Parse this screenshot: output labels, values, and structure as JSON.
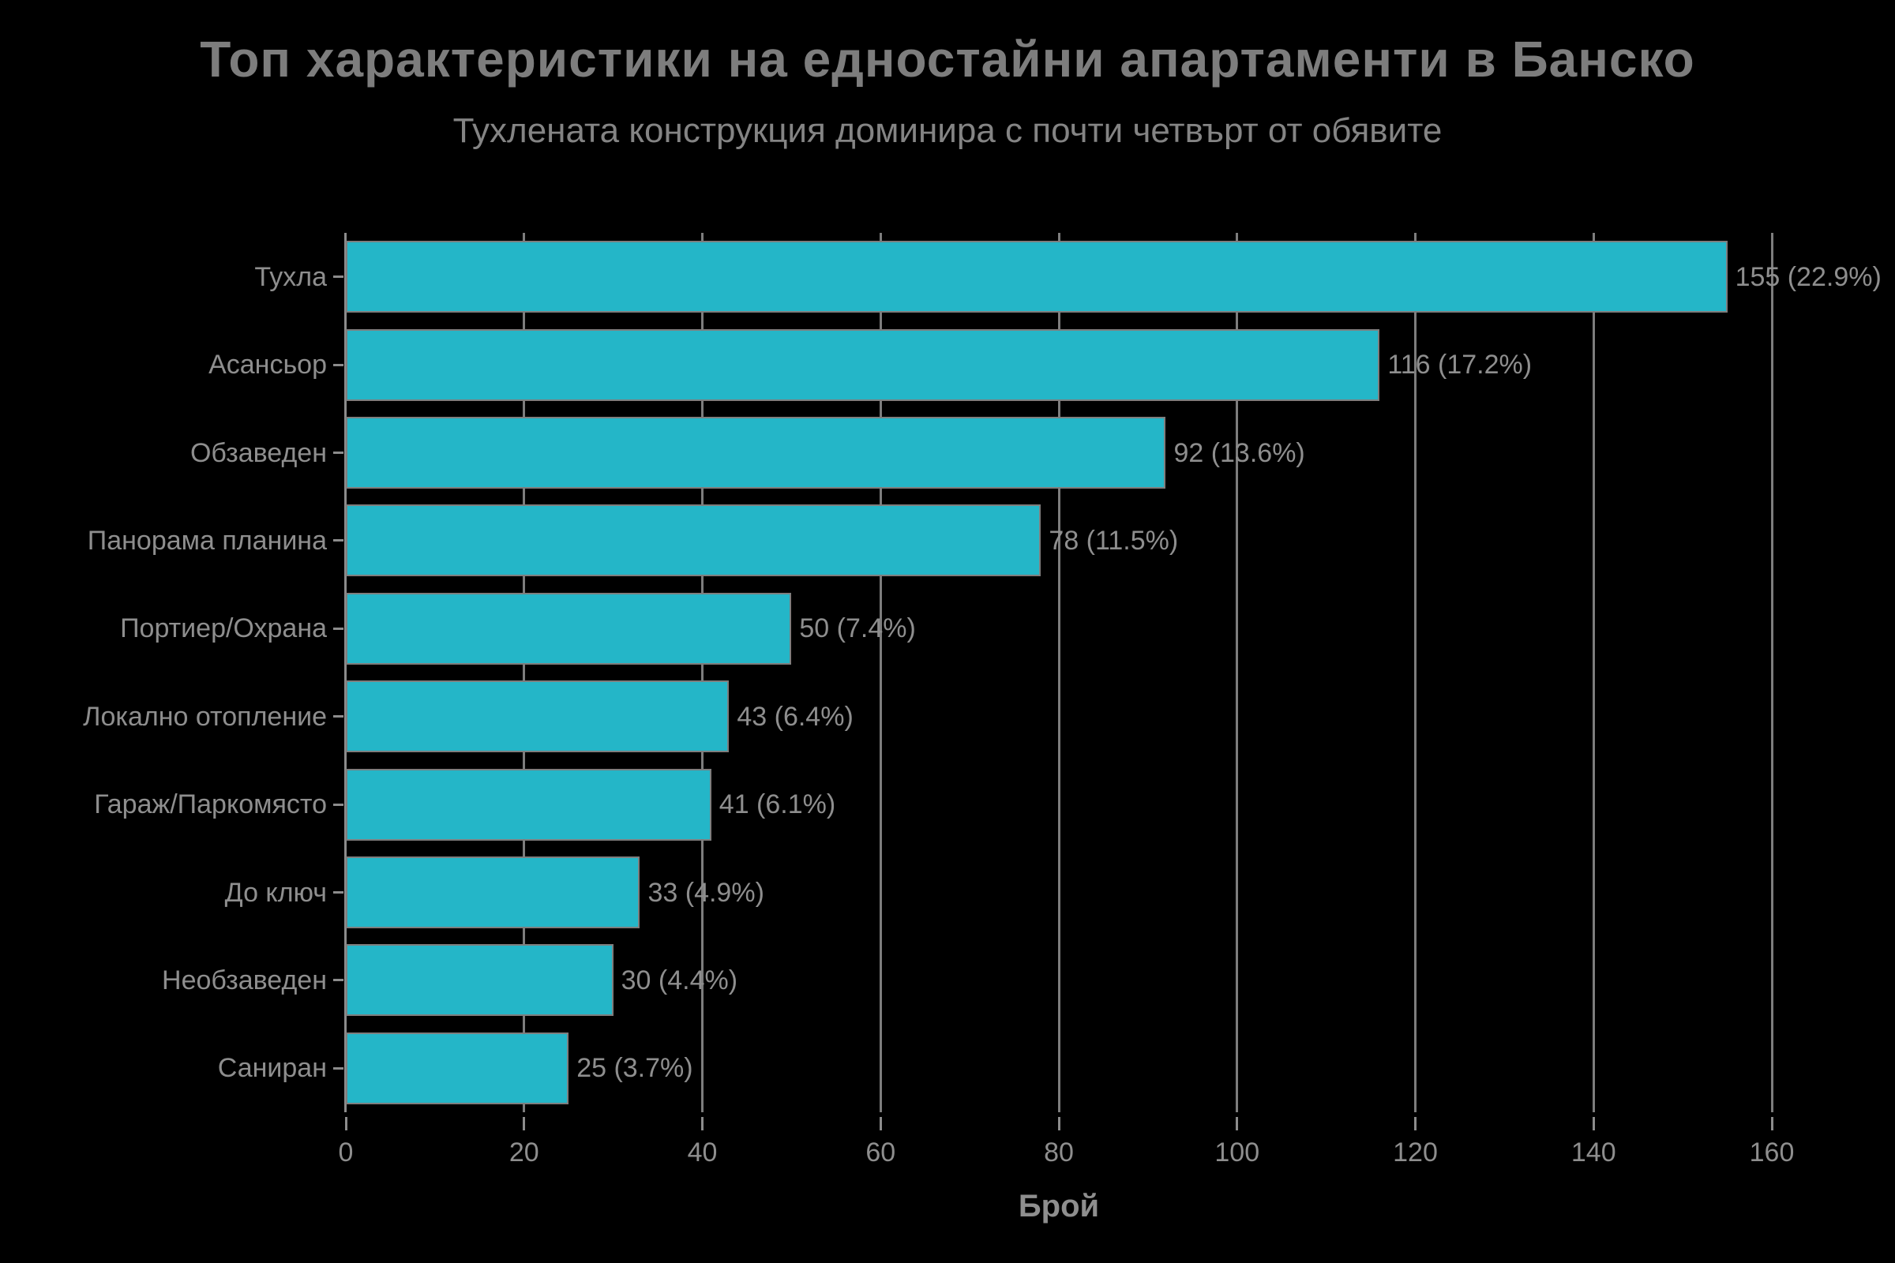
{
  "title": "Топ характеристики на едностайни апартаменти в Банско",
  "subtitle": "Тухлената конструкция доминира с почти четвърт от обявите",
  "chart_data": {
    "type": "bar",
    "orientation": "horizontal",
    "title": "Топ характеристики на едностайни апартаменти в Банско",
    "subtitle": "Тухлената конструкция доминира с почти четвърт от обявите",
    "categories": [
      "Тухла",
      "Асансьор",
      "Обзаведен",
      "Панорама планина",
      "Портиер/Охрана",
      "Локално отопление",
      "Гараж/Паркомясто",
      "До ключ",
      "Необзаведен",
      "Саниран"
    ],
    "values": [
      155,
      116,
      92,
      78,
      50,
      43,
      41,
      33,
      30,
      25
    ],
    "bar_labels": [
      "155 (22.9%)",
      "116 (17.2%)",
      "92 (13.6%)",
      "78 (11.5%)",
      "50 (7.4%)",
      "43 (6.4%)",
      "41 (6.1%)",
      "33 (4.9%)",
      "30 (4.4%)",
      "25 (3.7%)"
    ],
    "xlabel": "Брой",
    "ylabel": "",
    "xlim": [
      0,
      160
    ],
    "xticks": [
      0,
      20,
      40,
      60,
      80,
      100,
      120,
      140,
      160
    ],
    "grid": "vertical-behind-bars",
    "legend": "none",
    "colors": {
      "background": "#000000",
      "bar_fill": "#24b6c8",
      "bar_edge": "#7e7e7e",
      "grid": "#7d7d7d",
      "spine": "#8c8c8c",
      "title_text": "#7d7d7d",
      "subtitle_text": "#848484",
      "axis_text": "#8e8e8e"
    }
  }
}
